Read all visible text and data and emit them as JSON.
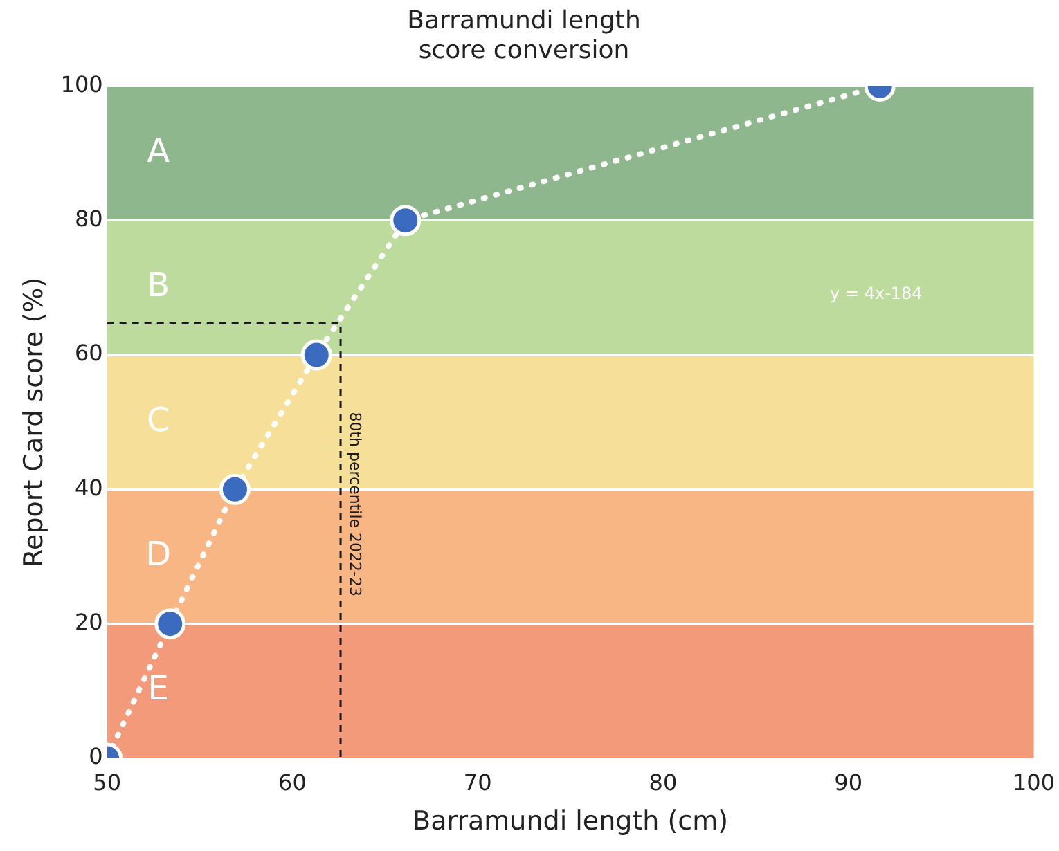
{
  "chart_data": {
    "type": "line",
    "title": "Barramundi length score conversion",
    "xlabel": "Barramundi length (cm)",
    "ylabel": "Report Card score (%)",
    "xlim": [
      50,
      100
    ],
    "xticks": [
      50,
      60,
      70,
      80,
      90,
      100
    ],
    "ylim": [
      0,
      100
    ],
    "yticks": [
      0,
      20,
      40,
      60,
      80,
      100
    ],
    "grid": "y",
    "legend": false,
    "series": [
      {
        "color": "#3a6bbf",
        "marker": "circle",
        "line_style": "dotted",
        "x": [
          50,
          53.4,
          56.9,
          61.3,
          66.1,
          91.7
        ],
        "values": [
          0,
          20,
          40,
          60,
          80,
          100
        ]
      },
      {
        "color": "#1a1a1a",
        "marker": "none",
        "line_style": "dashed",
        "x": [
          50,
          62.6,
          62.6
        ],
        "values": [
          64.7,
          64.7,
          0
        ]
      }
    ],
    "bands": [
      {
        "axis": "y",
        "from": 80,
        "to": 100,
        "label": "A",
        "color": "#8fb78d"
      },
      {
        "axis": "y",
        "from": 60,
        "to": 80,
        "label": "B",
        "color": "#bcdb9d"
      },
      {
        "axis": "y",
        "from": 40,
        "to": 60,
        "label": "C",
        "color": "#f6e099"
      },
      {
        "axis": "y",
        "from": 20,
        "to": 40,
        "label": "D",
        "color": "#f8b685"
      },
      {
        "axis": "y",
        "from": 0,
        "to": 20,
        "label": "E",
        "color": "#f39a7b"
      }
    ],
    "annotations": [
      {
        "text": "80th percentile 2022-23",
        "x": 62.6,
        "y": 37.8
      },
      "y = 4x-184"
    ]
  }
}
